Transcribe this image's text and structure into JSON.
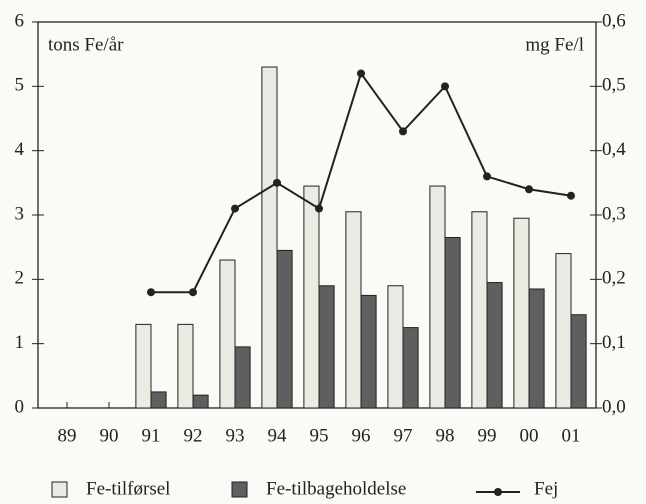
{
  "chart_data": {
    "type": "bar_line",
    "y_label": "tons Fe/år",
    "y2_label": "mg Fe/l",
    "categories": [
      "89",
      "90",
      "91",
      "92",
      "93",
      "94",
      "95",
      "96",
      "97",
      "98",
      "99",
      "00",
      "01"
    ],
    "series": [
      {
        "name": "Fe-tilførsel",
        "color": "#ebebe3",
        "type": "bar",
        "values": [
          null,
          null,
          1.3,
          1.3,
          2.3,
          5.3,
          3.45,
          3.05,
          1.9,
          3.45,
          3.05,
          2.95,
          2.4
        ]
      },
      {
        "name": "Fe-tilbageholdelse",
        "color": "#5f5f5f",
        "type": "bar",
        "values": [
          null,
          null,
          0.25,
          0.2,
          0.95,
          2.45,
          1.9,
          1.75,
          1.25,
          2.65,
          1.95,
          1.85,
          1.45
        ]
      },
      {
        "name": "Fej",
        "color": "#222222",
        "type": "line",
        "axis": "y2",
        "values": [
          null,
          null,
          0.18,
          0.18,
          0.31,
          0.35,
          0.31,
          0.52,
          0.43,
          0.5,
          0.36,
          0.34,
          0.33
        ]
      }
    ],
    "ylim": [
      0,
      6
    ],
    "yticks": [
      0,
      1,
      2,
      3,
      4,
      5,
      6
    ],
    "y2lim": [
      0,
      0.6
    ],
    "y2ticks": [
      {
        "value": 0,
        "label": "0,0"
      },
      {
        "value": 0.1,
        "label": "0,1"
      },
      {
        "value": 0.2,
        "label": "0,2"
      },
      {
        "value": 0.3,
        "label": "0,3"
      },
      {
        "value": 0.4,
        "label": "0,4"
      },
      {
        "value": 0.5,
        "label": "0,5"
      },
      {
        "value": 0.6,
        "label": "0,6"
      }
    ],
    "grid": false
  }
}
